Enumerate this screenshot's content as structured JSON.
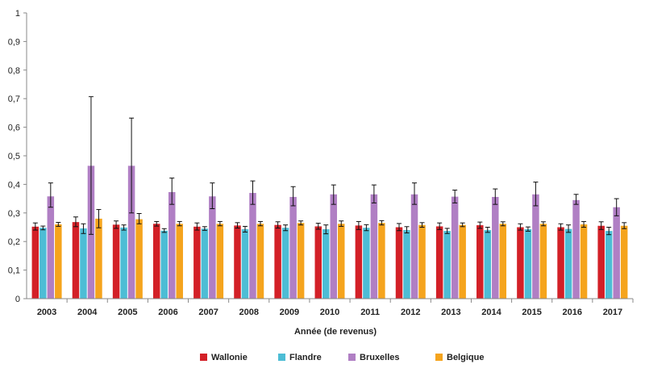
{
  "chart_data": {
    "type": "bar",
    "title": "",
    "xlabel": "Année (de revenus)",
    "ylabel": "",
    "ylim": [
      0,
      1
    ],
    "yticks": [
      "0",
      "0,1",
      "0,2",
      "0,3",
      "0,4",
      "0,5",
      "0,6",
      "0,7",
      "0,8",
      "0,9",
      "1"
    ],
    "grid": false,
    "legend_position": "bottom",
    "categories": [
      "2003",
      "2004",
      "2005",
      "2006",
      "2007",
      "2008",
      "2009",
      "2010",
      "2011",
      "2012",
      "2013",
      "2014",
      "2015",
      "2016",
      "2017"
    ],
    "series": [
      {
        "name": "Wallonie",
        "color": "#d32027",
        "values": [
          0.252,
          0.268,
          0.259,
          0.262,
          0.252,
          0.256,
          0.258,
          0.253,
          0.256,
          0.25,
          0.253,
          0.257,
          0.25,
          0.25,
          0.255
        ],
        "err_low": [
          0.24,
          0.252,
          0.246,
          0.254,
          0.24,
          0.247,
          0.247,
          0.243,
          0.242,
          0.238,
          0.242,
          0.246,
          0.24,
          0.24,
          0.242
        ],
        "err_high": [
          0.265,
          0.286,
          0.272,
          0.27,
          0.265,
          0.266,
          0.269,
          0.264,
          0.27,
          0.263,
          0.265,
          0.268,
          0.262,
          0.262,
          0.269
        ]
      },
      {
        "name": "Flandre",
        "color": "#4dbdd5",
        "values": [
          0.248,
          0.246,
          0.249,
          0.238,
          0.245,
          0.243,
          0.248,
          0.243,
          0.248,
          0.24,
          0.237,
          0.24,
          0.243,
          0.244,
          0.237
        ],
        "err_low": [
          0.241,
          0.228,
          0.24,
          0.232,
          0.239,
          0.233,
          0.238,
          0.227,
          0.238,
          0.23,
          0.228,
          0.232,
          0.236,
          0.232,
          0.224
        ],
        "err_high": [
          0.254,
          0.262,
          0.258,
          0.245,
          0.252,
          0.253,
          0.258,
          0.258,
          0.259,
          0.252,
          0.246,
          0.25,
          0.251,
          0.258,
          0.25
        ]
      },
      {
        "name": "Bruxelles",
        "color": "#b07fc4",
        "values": [
          0.358,
          0.465,
          0.465,
          0.373,
          0.358,
          0.37,
          0.356,
          0.365,
          0.365,
          0.365,
          0.357,
          0.356,
          0.365,
          0.345,
          0.32
        ],
        "err_low": [
          0.32,
          0.225,
          0.3,
          0.33,
          0.315,
          0.33,
          0.325,
          0.33,
          0.335,
          0.33,
          0.335,
          0.33,
          0.325,
          0.33,
          0.29
        ],
        "err_high": [
          0.405,
          0.707,
          0.632,
          0.422,
          0.405,
          0.412,
          0.392,
          0.398,
          0.398,
          0.405,
          0.38,
          0.384,
          0.408,
          0.365,
          0.35
        ]
      },
      {
        "name": "Belgique",
        "color": "#f5a41d",
        "values": [
          0.26,
          0.28,
          0.278,
          0.262,
          0.262,
          0.262,
          0.265,
          0.262,
          0.265,
          0.258,
          0.258,
          0.262,
          0.262,
          0.26,
          0.255
        ],
        "err_low": [
          0.253,
          0.248,
          0.262,
          0.255,
          0.255,
          0.255,
          0.258,
          0.253,
          0.258,
          0.25,
          0.252,
          0.255,
          0.255,
          0.25,
          0.245
        ],
        "err_high": [
          0.267,
          0.312,
          0.298,
          0.27,
          0.27,
          0.27,
          0.272,
          0.272,
          0.273,
          0.266,
          0.265,
          0.269,
          0.269,
          0.27,
          0.266
        ]
      }
    ]
  }
}
